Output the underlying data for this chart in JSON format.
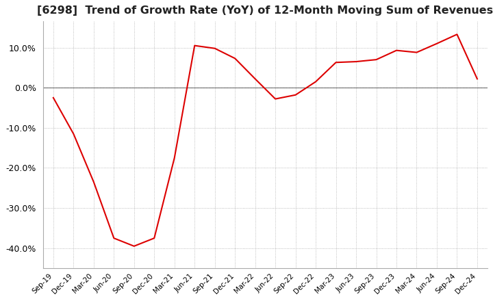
{
  "title": "[6298]  Trend of Growth Rate (YoY) of 12-Month Moving Sum of Revenues",
  "title_fontsize": 11.5,
  "line_color": "#dd0000",
  "background_color": "#ffffff",
  "plot_bg_color": "#ffffff",
  "grid_color": "#aaaaaa",
  "zero_line_color": "#555555",
  "ylim": [
    -0.45,
    0.165
  ],
  "yticks": [
    -0.4,
    -0.3,
    -0.2,
    -0.1,
    0.0,
    0.1
  ],
  "x_labels": [
    "Sep-19",
    "Dec-19",
    "Mar-20",
    "Jun-20",
    "Sep-20",
    "Dec-20",
    "Mar-21",
    "Jun-21",
    "Sep-21",
    "Dec-21",
    "Mar-22",
    "Jun-22",
    "Sep-22",
    "Dec-22",
    "Mar-23",
    "Jun-23",
    "Sep-23",
    "Dec-23",
    "Mar-24",
    "Jun-24",
    "Sep-24",
    "Dec-24"
  ],
  "values": [
    -0.025,
    -0.115,
    -0.235,
    -0.375,
    -0.395,
    -0.375,
    -0.175,
    0.105,
    0.098,
    0.073,
    0.022,
    -0.028,
    -0.018,
    0.015,
    0.063,
    0.065,
    0.07,
    0.093,
    0.088,
    0.11,
    0.133,
    0.022
  ]
}
